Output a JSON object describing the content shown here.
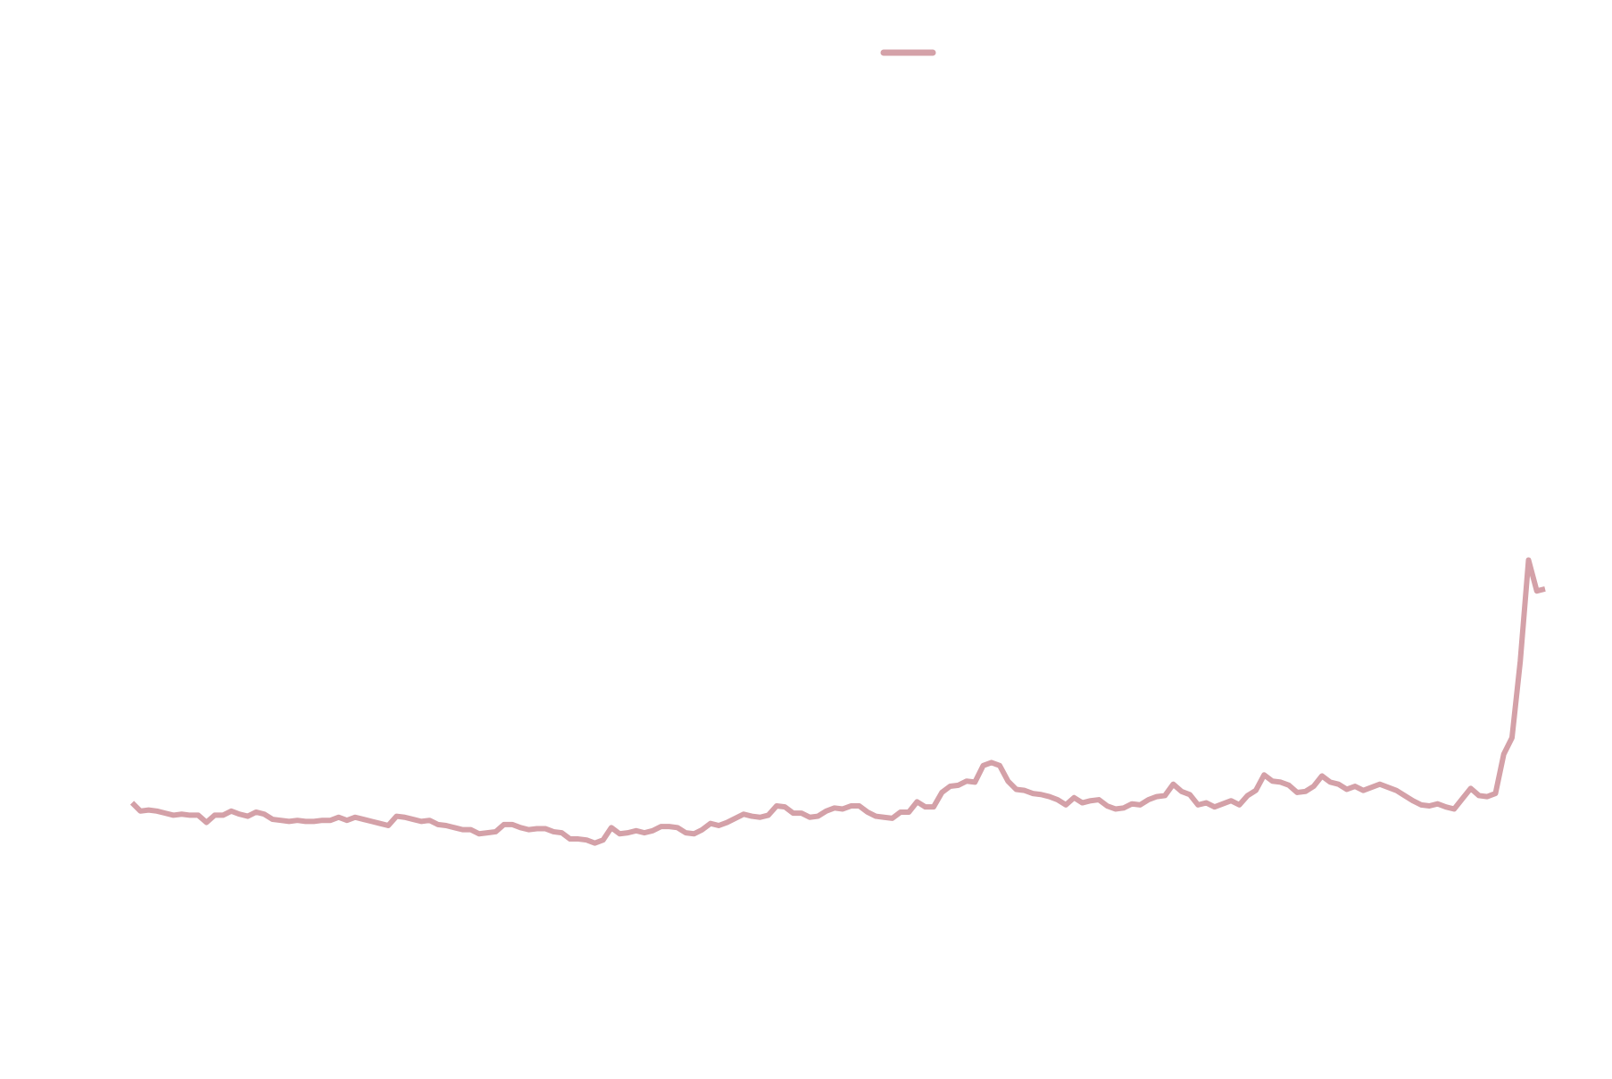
{
  "chart_data": {
    "type": "line",
    "color": "#d4a1a8",
    "legend": "top",
    "grid": false,
    "ylim": [
      5,
      105
    ],
    "values": [
      27.3,
      26.5,
      26.6,
      26.5,
      26.3,
      26.1,
      26.2,
      26.1,
      26.1,
      25.4,
      26.1,
      26.1,
      26.5,
      26.2,
      26.0,
      26.4,
      26.2,
      25.7,
      25.6,
      25.5,
      25.6,
      25.5,
      25.5,
      25.6,
      25.6,
      25.9,
      25.6,
      25.9,
      25.7,
      25.5,
      25.3,
      25.1,
      26.0,
      25.9,
      25.7,
      25.5,
      25.6,
      25.2,
      25.1,
      24.9,
      24.7,
      24.7,
      24.3,
      24.4,
      24.5,
      25.2,
      25.2,
      24.9,
      24.7,
      24.8,
      24.8,
      24.5,
      24.4,
      23.8,
      23.8,
      23.7,
      23.4,
      23.7,
      24.9,
      24.3,
      24.4,
      24.6,
      24.4,
      24.6,
      25.0,
      25.0,
      24.9,
      24.4,
      24.3,
      24.7,
      25.3,
      25.1,
      25.4,
      25.8,
      26.2,
      26.0,
      25.9,
      26.1,
      27.0,
      26.9,
      26.3,
      26.3,
      25.9,
      26.0,
      26.5,
      26.8,
      26.7,
      27.0,
      27.0,
      26.4,
      26.0,
      25.9,
      25.8,
      26.4,
      26.4,
      27.4,
      26.9,
      26.9,
      28.3,
      28.9,
      29.0,
      29.4,
      29.3,
      30.9,
      31.2,
      30.9,
      29.4,
      28.6,
      28.5,
      28.2,
      28.1,
      27.9,
      27.6,
      27.1,
      27.8,
      27.3,
      27.5,
      27.6,
      27.0,
      26.7,
      26.8,
      27.2,
      27.1,
      27.6,
      27.9,
      28.0,
      29.1,
      28.4,
      28.1,
      27.1,
      27.3,
      26.9,
      27.2,
      27.5,
      27.1,
      28.0,
      28.5,
      30.0,
      29.4,
      29.3,
      29.0,
      28.3,
      28.4,
      28.9,
      29.9,
      29.3,
      29.1,
      28.6,
      28.9,
      28.5,
      28.8,
      29.1,
      28.8,
      28.5,
      28.0,
      27.5,
      27.1,
      27.0,
      27.2,
      26.9,
      26.7,
      27.7,
      28.7,
      28.0,
      27.9,
      28.2,
      32.0,
      33.6,
      41.0,
      50.8,
      47.8,
      48.0
    ]
  }
}
